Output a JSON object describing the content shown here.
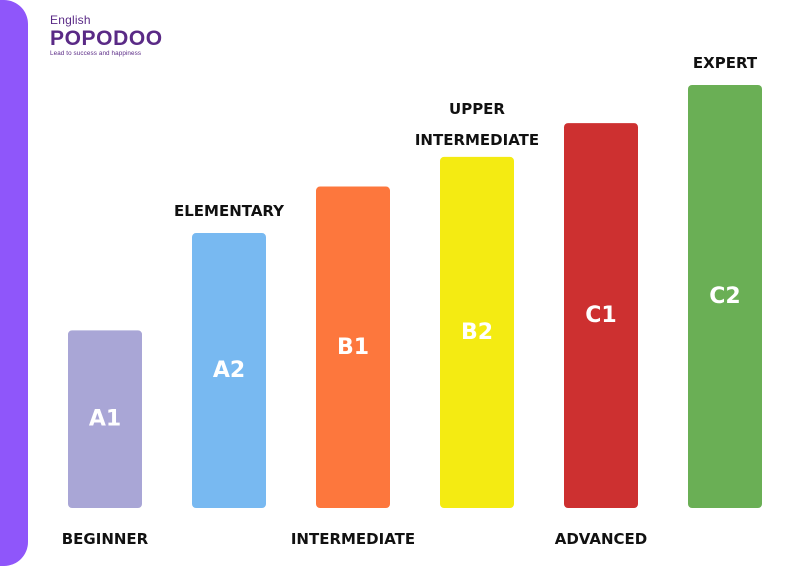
{
  "logo": {
    "top": "English",
    "main": "POPODOO",
    "tagline": "Lead to success and happiness"
  },
  "colors": {
    "side_strip": "#8f56fa",
    "logo_text": "#5a2a86"
  },
  "chart_data": {
    "type": "bar",
    "title": "",
    "xlabel": "",
    "ylabel": "",
    "grid": false,
    "legend": "none",
    "ylim": [
      0,
      100
    ],
    "categories": [
      "A1",
      "A2",
      "B1",
      "B2",
      "C1",
      "C2"
    ],
    "values": [
      42,
      65,
      76,
      83,
      91,
      100
    ],
    "levels": [
      "BEGINNER",
      "ELEMENTARY",
      "INTERMEDIATE",
      "UPPER INTERMEDIATE",
      "ADVANCED",
      "EXPERT"
    ],
    "colors": [
      "#a9a6d6",
      "#78b9f1",
      "#fd773d",
      "#f4eb12",
      "#cd3030",
      "#6aaf55"
    ]
  }
}
